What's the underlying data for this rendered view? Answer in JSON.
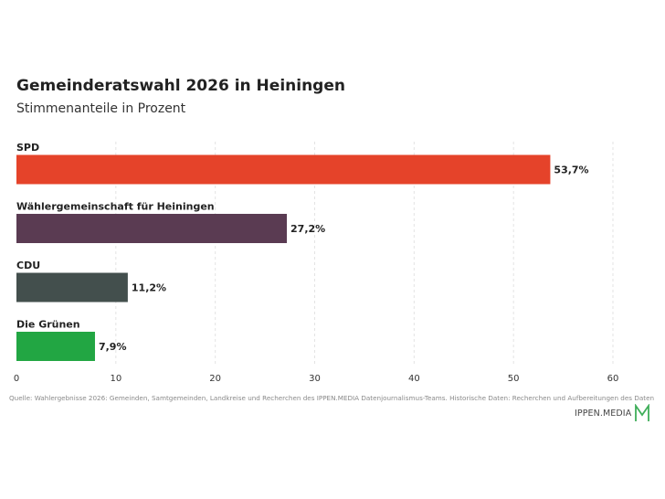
{
  "brand": {
    "name": "IPPEN.MEDIA",
    "accent": "#3fae5a"
  },
  "chart_data": {
    "type": "bar",
    "orientation": "horizontal",
    "title": "Gemeinderatswahl 2026 in Heiningen",
    "subtitle": "Stimmenanteile in Prozent",
    "categories": [
      "SPD",
      "Wählergemeinschaft für Heiningen",
      "CDU",
      "Die Grünen"
    ],
    "values": [
      53.7,
      27.2,
      11.2,
      7.9
    ],
    "value_labels": [
      "53,7%",
      "27,2%",
      "11,2%",
      "7,9%"
    ],
    "colors": [
      "#e5432a",
      "#5a3b52",
      "#434f4d",
      "#22a643"
    ],
    "x_ticks": [
      0,
      10,
      20,
      30,
      40,
      50,
      60
    ],
    "xlim": [
      0,
      60
    ],
    "grid": "vertical dashed",
    "source": "Quelle: Wahlergebnisse 2026: Gemeinden, Samtgemeinden, Landkreise und Recherchen des IPPEN.MEDIA Datenjournalismus-Teams. Historische Daten: Recherchen und Aufbereitungen des Daten"
  }
}
